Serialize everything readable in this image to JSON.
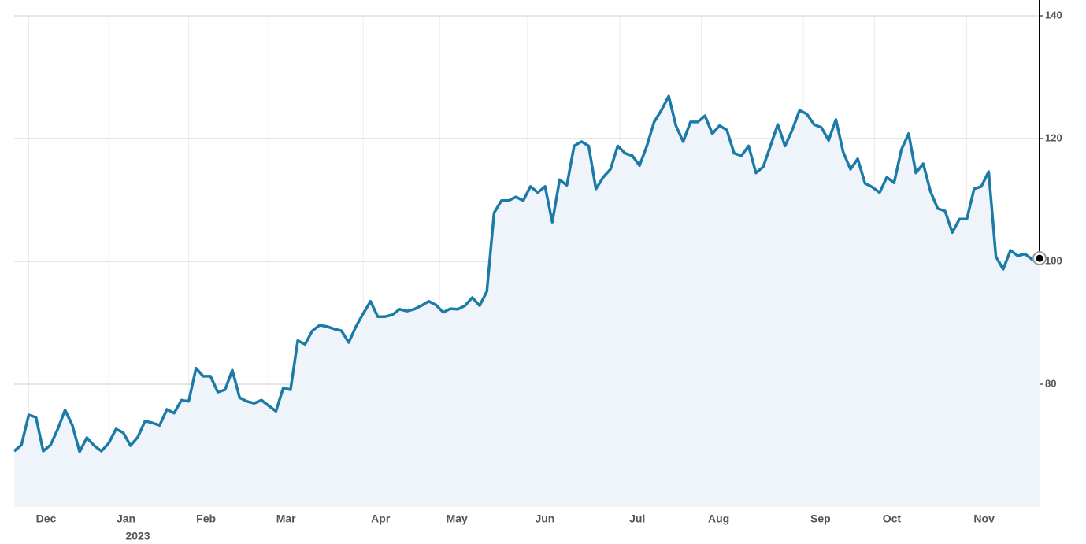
{
  "chart_data": {
    "type": "area",
    "values": [
      69.1,
      70.1,
      75.0,
      74.6,
      69.1,
      70.1,
      72.7,
      75.8,
      73.3,
      69.0,
      71.3,
      70.0,
      69.1,
      70.4,
      72.7,
      72.1,
      70.0,
      71.4,
      74.0,
      73.7,
      73.3,
      75.9,
      75.3,
      77.4,
      77.2,
      82.6,
      81.3,
      81.3,
      78.7,
      79.1,
      82.3,
      77.8,
      77.2,
      76.9,
      77.4,
      76.5,
      75.6,
      79.4,
      79.1,
      87.1,
      86.5,
      88.7,
      89.6,
      89.4,
      89.0,
      88.7,
      86.8,
      89.4,
      91.5,
      93.5,
      91.0,
      91.0,
      91.3,
      92.2,
      91.9,
      92.2,
      92.8,
      93.5,
      92.9,
      91.7,
      92.3,
      92.2,
      92.8,
      94.1,
      92.8,
      95.1,
      107.9,
      109.9,
      109.9,
      110.5,
      109.9,
      112.2,
      111.2,
      112.2,
      106.4,
      113.3,
      112.4,
      118.8,
      119.5,
      118.8,
      111.8,
      113.7,
      115.0,
      118.8,
      117.6,
      117.2,
      115.6,
      118.8,
      122.7,
      124.6,
      126.9,
      122.1,
      119.5,
      122.7,
      122.7,
      123.7,
      120.8,
      122.1,
      121.4,
      117.6,
      117.2,
      118.8,
      114.4,
      115.4,
      118.8,
      122.3,
      118.8,
      121.4,
      124.6,
      124.0,
      122.3,
      121.8,
      119.7,
      123.1,
      117.8,
      115.0,
      116.7,
      112.7,
      112.1,
      111.2,
      113.7,
      112.8,
      118.2,
      120.8,
      114.4,
      115.9,
      111.4,
      108.6,
      108.2,
      104.7,
      106.9,
      106.9,
      111.8,
      112.2,
      114.6,
      100.8,
      98.7,
      101.8,
      100.9,
      101.2,
      100.3,
      100.5
    ],
    "color": "#1b7ba6",
    "fill": "#eef4fa",
    "xlim": [
      0,
      141
    ],
    "xticks": [
      {
        "value": 2,
        "label": "Dec"
      },
      {
        "value": 13,
        "label": "Jan"
      },
      {
        "value": 24,
        "label": "Feb"
      },
      {
        "value": 35,
        "label": "Mar"
      },
      {
        "value": 48,
        "label": "Apr"
      },
      {
        "value": 58.5,
        "label": "May"
      },
      {
        "value": 70.6,
        "label": "Jun"
      },
      {
        "value": 83.3,
        "label": "Jul"
      },
      {
        "value": 94.5,
        "label": "Aug"
      },
      {
        "value": 108.5,
        "label": "Sep"
      },
      {
        "value": 118.3,
        "label": "Oct"
      },
      {
        "value": 131,
        "label": "Nov"
      }
    ],
    "year_label": "2023",
    "ylim": [
      60,
      140
    ],
    "yticks": [
      80,
      100,
      120,
      140
    ],
    "grid": true
  }
}
